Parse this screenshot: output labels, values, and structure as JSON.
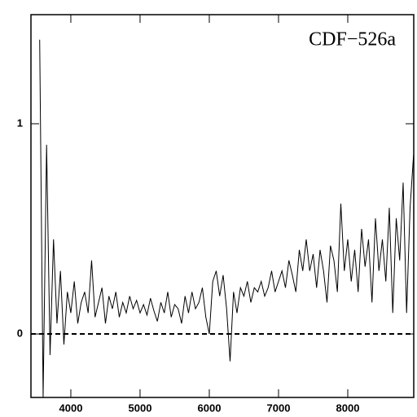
{
  "chart_data": {
    "type": "line",
    "title": "CDF−526a",
    "x": [
      3550,
      3600,
      3650,
      3700,
      3750,
      3800,
      3850,
      3900,
      3950,
      4000,
      4050,
      4100,
      4150,
      4200,
      4250,
      4300,
      4350,
      4400,
      4450,
      4500,
      4550,
      4600,
      4650,
      4700,
      4750,
      4800,
      4850,
      4900,
      4950,
      5000,
      5050,
      5100,
      5150,
      5200,
      5250,
      5300,
      5350,
      5400,
      5450,
      5500,
      5550,
      5600,
      5650,
      5700,
      5750,
      5800,
      5850,
      5900,
      5950,
      6000,
      6050,
      6100,
      6150,
      6200,
      6250,
      6300,
      6350,
      6400,
      6450,
      6500,
      6550,
      6600,
      6650,
      6700,
      6750,
      6800,
      6850,
      6900,
      6950,
      7000,
      7050,
      7100,
      7150,
      7200,
      7250,
      7300,
      7350,
      7400,
      7450,
      7500,
      7550,
      7600,
      7650,
      7700,
      7750,
      7800,
      7850,
      7900,
      7950,
      8000,
      8050,
      8100,
      8150,
      8200,
      8250,
      8300,
      8350,
      8400,
      8450,
      8500,
      8550,
      8600,
      8650,
      8700,
      8750,
      8800,
      8850,
      8900,
      8950
    ],
    "values": [
      1.4,
      -0.3,
      0.9,
      -0.1,
      0.45,
      0.05,
      0.3,
      -0.05,
      0.2,
      0.1,
      0.25,
      0.05,
      0.15,
      0.2,
      0.1,
      0.35,
      0.08,
      0.15,
      0.22,
      0.05,
      0.18,
      0.12,
      0.2,
      0.08,
      0.15,
      0.1,
      0.18,
      0.12,
      0.16,
      0.1,
      0.14,
      0.09,
      0.17,
      0.11,
      0.06,
      0.15,
      0.1,
      0.2,
      0.08,
      0.14,
      0.12,
      0.05,
      0.18,
      0.1,
      0.2,
      0.12,
      0.15,
      0.22,
      0.08,
      0.0,
      0.25,
      0.3,
      0.18,
      0.28,
      0.12,
      -0.13,
      0.2,
      0.1,
      0.22,
      0.18,
      0.25,
      0.15,
      0.22,
      0.2,
      0.25,
      0.18,
      0.22,
      0.3,
      0.2,
      0.25,
      0.3,
      0.22,
      0.35,
      0.28,
      0.2,
      0.4,
      0.3,
      0.45,
      0.3,
      0.38,
      0.22,
      0.4,
      0.3,
      0.15,
      0.42,
      0.35,
      0.2,
      0.62,
      0.3,
      0.45,
      0.25,
      0.4,
      0.2,
      0.5,
      0.32,
      0.45,
      0.15,
      0.55,
      0.3,
      0.45,
      0.25,
      0.6,
      0.1,
      0.55,
      0.35,
      0.72,
      0.1,
      0.6,
      0.85
    ],
    "color": "#000000",
    "reference_line": 0,
    "xlim": [
      3424,
      8953
    ],
    "ylim": [
      -0.302,
      1.519
    ],
    "xticks": [
      4000,
      5000,
      6000,
      7000,
      8000
    ],
    "yticks": [
      0,
      1
    ]
  }
}
